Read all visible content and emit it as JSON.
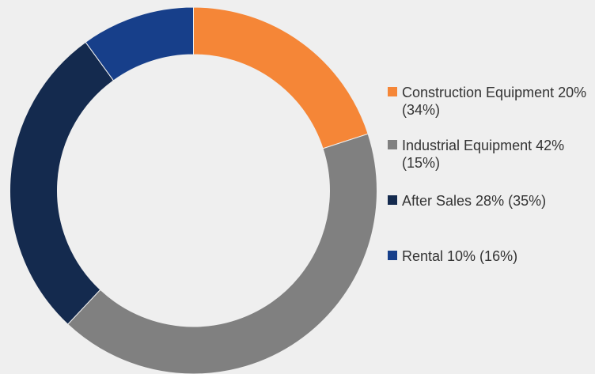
{
  "chart_data": {
    "type": "donut",
    "categories": [
      "Construction Equipment 20% (34%)",
      "Industrial Equipment 42% (15%)",
      "After Sales 28% (35%)",
      "Rental 10% (16%)"
    ],
    "values": [
      20,
      42,
      28,
      10
    ],
    "colors": [
      "#f58637",
      "#808080",
      "#142a4e",
      "#173f8a"
    ],
    "legend": "right"
  }
}
